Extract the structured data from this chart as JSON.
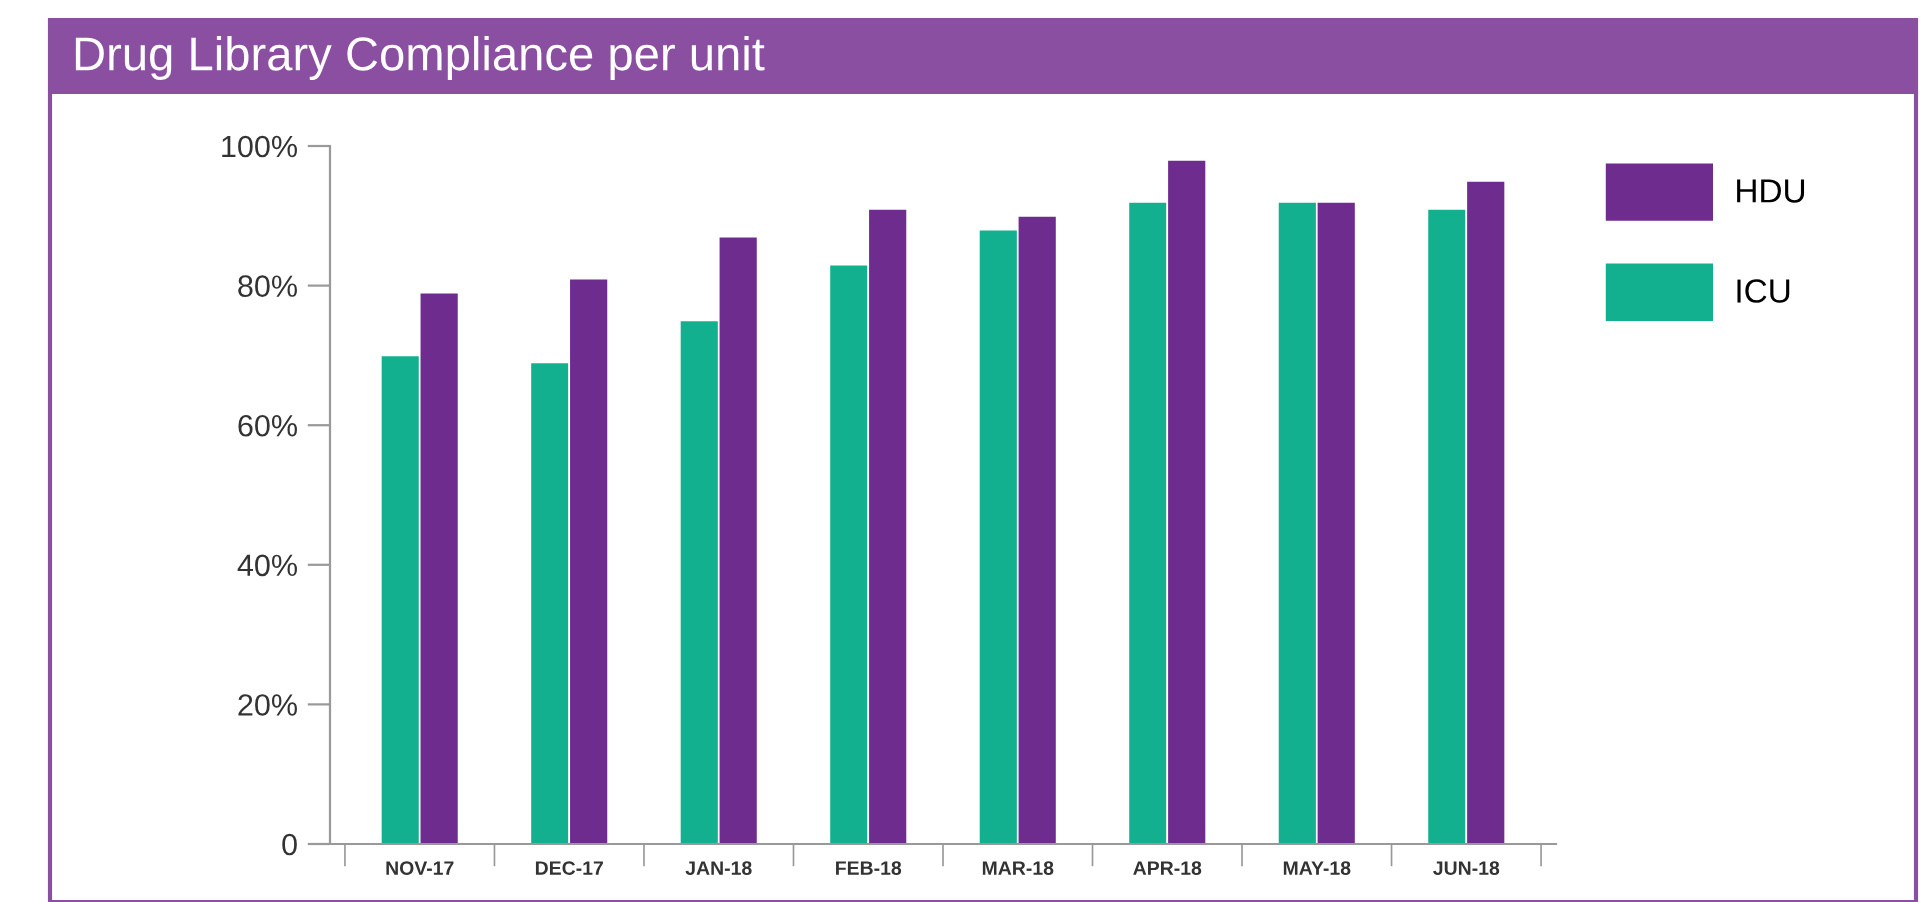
{
  "chart_data": {
    "type": "bar",
    "title": "Drug Library Compliance per unit",
    "categories": [
      "NOV-17",
      "DEC-17",
      "JAN-18",
      "FEB-18",
      "MAR-18",
      "APR-18",
      "MAY-18",
      "JUN-18"
    ],
    "series": [
      {
        "name": "ICU",
        "color": "#13b08f",
        "values": [
          70,
          69,
          75,
          83,
          88,
          92,
          92,
          91
        ]
      },
      {
        "name": "HDU",
        "color": "#6f2c8f",
        "values": [
          79,
          81,
          87,
          91,
          90,
          98,
          92,
          95
        ]
      }
    ],
    "ylim": [
      0,
      100
    ],
    "yticks": [
      0,
      {
        "value": 20,
        "label": "20%"
      },
      {
        "value": 40,
        "label": "40%"
      },
      {
        "value": 60,
        "label": "60%"
      },
      {
        "value": 80,
        "label": "80%"
      },
      {
        "value": 100,
        "label": "100%"
      }
    ],
    "grid": false,
    "legend": "top right"
  }
}
